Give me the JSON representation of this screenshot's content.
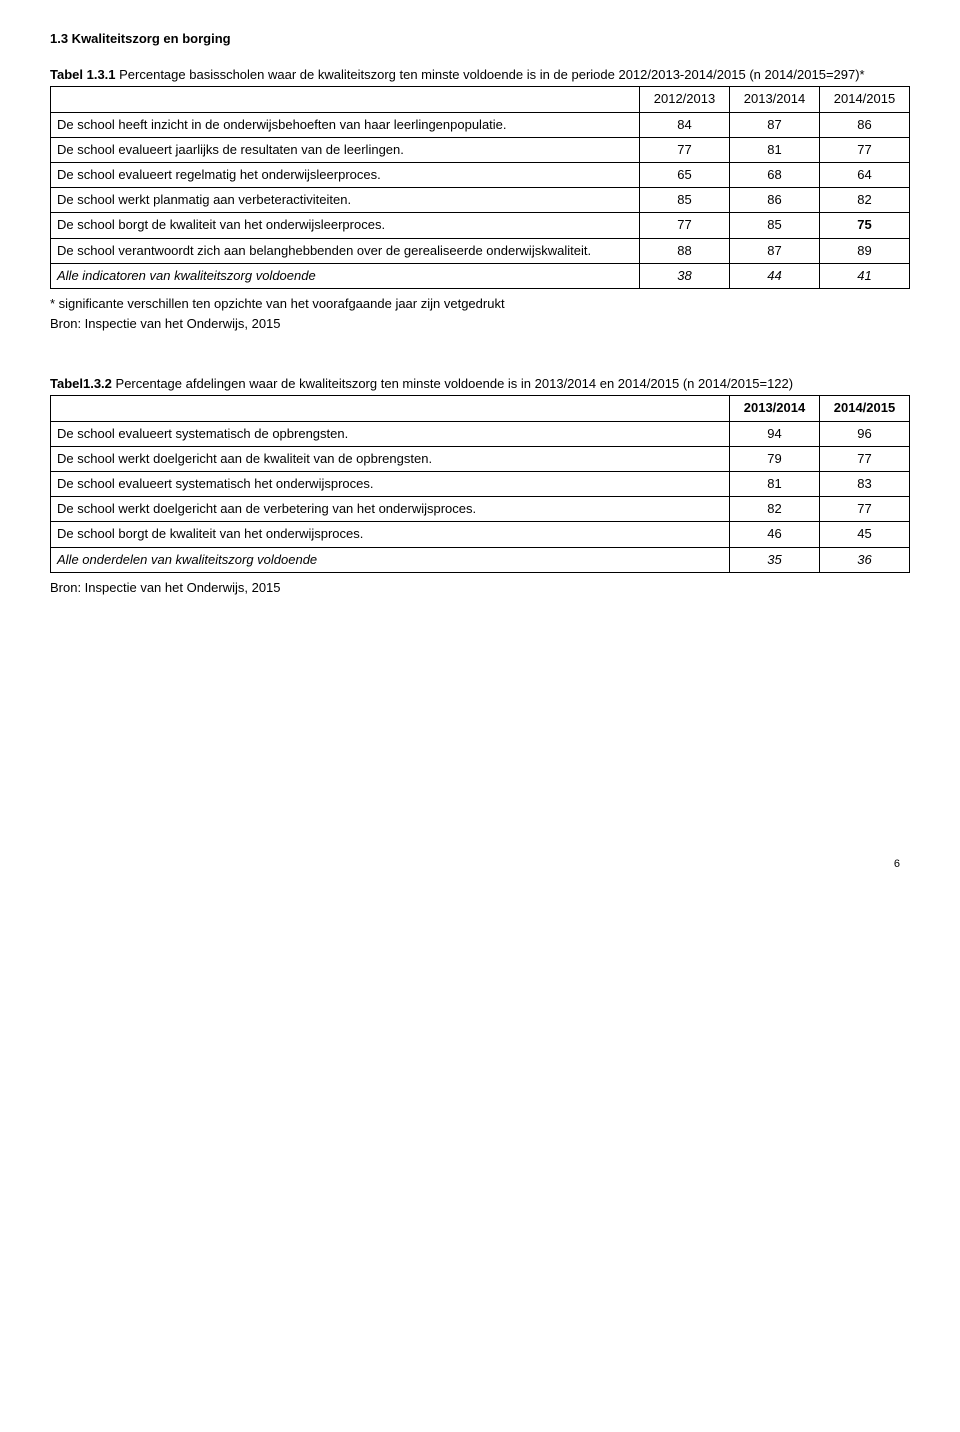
{
  "section_heading": "1.3 Kwaliteitszorg en borging",
  "table1": {
    "caption_bold": "Tabel 1.3.1",
    "caption_rest": " Percentage basisscholen waar de kwaliteitszorg ten minste voldoende is in de periode 2012/2013-2014/2015 (n 2014/2015=297)*",
    "headers": [
      "2012/2013",
      "2013/2014",
      "2014/2015"
    ],
    "rows": [
      {
        "label": "De school heeft inzicht in de onderwijsbehoeften van haar leerlingenpopulatie.",
        "v": [
          "84",
          "87",
          "86"
        ],
        "bold_last": false
      },
      {
        "label": "De school evalueert jaarlijks de resultaten van de leerlingen.",
        "v": [
          "77",
          "81",
          "77"
        ],
        "bold_last": false
      },
      {
        "label": "De school evalueert regelmatig het onderwijsleerproces.",
        "v": [
          "65",
          "68",
          "64"
        ],
        "bold_last": false
      },
      {
        "label": "De school werkt planmatig aan verbeteractiviteiten.",
        "v": [
          "85",
          "86",
          "82"
        ],
        "bold_last": false
      },
      {
        "label": "De school borgt de kwaliteit van het onderwijsleerproces.",
        "v": [
          "77",
          "85",
          "75"
        ],
        "bold_last": true
      },
      {
        "label": "De school verantwoordt zich aan belanghebbenden over de gerealiseerde onderwijskwaliteit.",
        "v": [
          "88",
          "87",
          "89"
        ],
        "bold_last": false
      }
    ],
    "footer_row": {
      "label": "Alle indicatoren van kwaliteitszorg voldoende",
      "v": [
        "38",
        "44",
        "41"
      ]
    },
    "note1": "* significante verschillen ten opzichte van het voorafgaande jaar zijn vetgedrukt",
    "note2": "Bron: Inspectie van het Onderwijs, 2015"
  },
  "table2": {
    "caption_bold": "Tabel1.3.2",
    "caption_rest": " Percentage afdelingen waar de kwaliteitszorg ten minste voldoende is in 2013/2014 en 2014/2015 (n 2014/2015=122)",
    "headers": [
      "2013/2014",
      "2014/2015"
    ],
    "rows": [
      {
        "label": "De school evalueert systematisch de opbrengsten.",
        "v": [
          "94",
          "96"
        ]
      },
      {
        "label": "De school werkt doelgericht aan de kwaliteit van de opbrengsten.",
        "v": [
          "79",
          "77"
        ]
      },
      {
        "label": "De school evalueert systematisch het onderwijsproces.",
        "v": [
          "81",
          "83"
        ]
      },
      {
        "label": "De school werkt doelgericht aan de verbetering van het onderwijsproces.",
        "v": [
          "82",
          "77"
        ]
      },
      {
        "label": "De school borgt de kwaliteit van het onderwijsproces.",
        "v": [
          "46",
          "45"
        ]
      }
    ],
    "footer_row": {
      "label": "Alle onderdelen van kwaliteitszorg voldoende",
      "v": [
        "35",
        "36"
      ]
    },
    "note": "Bron: Inspectie van het Onderwijs, 2015"
  },
  "page_number": "6"
}
